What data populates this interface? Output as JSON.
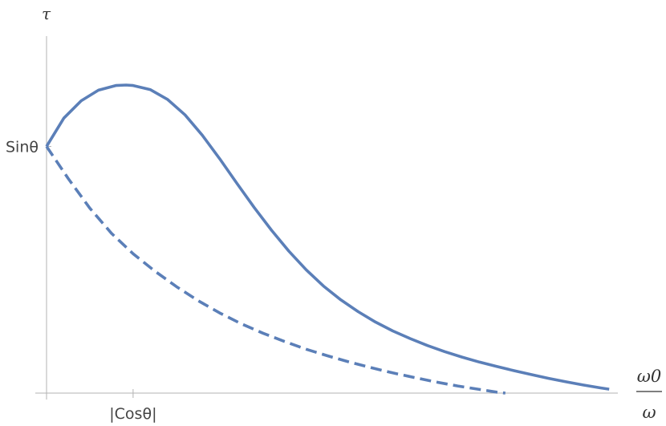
{
  "chart_data": {
    "type": "line",
    "title": "",
    "xlabel": {
      "numerator": "ω0",
      "denominator": "ω"
    },
    "ylabel": "τ",
    "xlim": [
      0,
      6.6
    ],
    "ylim": [
      0,
      1.47
    ],
    "x_ticks": [
      {
        "value": 1,
        "label": "|Cosθ|"
      }
    ],
    "y_ticks": [
      {
        "value": 1,
        "label": "Sinθ"
      }
    ],
    "grid": false,
    "legend": "none",
    "series": [
      {
        "style": "solid",
        "color": "#5b7fb8",
        "points": [
          [
            0.0,
            1.0
          ],
          [
            0.2,
            1.115
          ],
          [
            0.4,
            1.185
          ],
          [
            0.6,
            1.228
          ],
          [
            0.8,
            1.247
          ],
          [
            0.92,
            1.249
          ],
          [
            1.0,
            1.247
          ],
          [
            1.2,
            1.23
          ],
          [
            1.4,
            1.19
          ],
          [
            1.6,
            1.128
          ],
          [
            1.8,
            1.045
          ],
          [
            2.0,
            0.95
          ],
          [
            2.2,
            0.85
          ],
          [
            2.4,
            0.752
          ],
          [
            2.6,
            0.66
          ],
          [
            2.8,
            0.575
          ],
          [
            3.0,
            0.5
          ],
          [
            3.2,
            0.434
          ],
          [
            3.4,
            0.378
          ],
          [
            3.6,
            0.33
          ],
          [
            3.8,
            0.288
          ],
          [
            4.0,
            0.252
          ],
          [
            4.2,
            0.221
          ],
          [
            4.4,
            0.193
          ],
          [
            4.6,
            0.168
          ],
          [
            4.8,
            0.146
          ],
          [
            5.0,
            0.126
          ],
          [
            5.2,
            0.108
          ],
          [
            5.4,
            0.091
          ],
          [
            5.6,
            0.075
          ],
          [
            5.8,
            0.06
          ],
          [
            6.0,
            0.046
          ],
          [
            6.2,
            0.033
          ],
          [
            6.4,
            0.021
          ],
          [
            6.5,
            0.016
          ]
        ]
      },
      {
        "style": "dashed",
        "color": "#5b7fb8",
        "points": [
          [
            0.0,
            1.0
          ],
          [
            0.25,
            0.87
          ],
          [
            0.5,
            0.75
          ],
          [
            0.75,
            0.648
          ],
          [
            1.0,
            0.565
          ],
          [
            1.25,
            0.495
          ],
          [
            1.5,
            0.432
          ],
          [
            1.75,
            0.375
          ],
          [
            2.0,
            0.325
          ],
          [
            2.25,
            0.281
          ],
          [
            2.5,
            0.243
          ],
          [
            2.75,
            0.209
          ],
          [
            3.0,
            0.178
          ],
          [
            3.25,
            0.151
          ],
          [
            3.5,
            0.126
          ],
          [
            3.75,
            0.103
          ],
          [
            4.0,
            0.082
          ],
          [
            4.25,
            0.063
          ],
          [
            4.5,
            0.045
          ],
          [
            4.75,
            0.029
          ],
          [
            5.0,
            0.015
          ],
          [
            5.2,
            0.004
          ],
          [
            5.3,
            0.0
          ]
        ]
      }
    ]
  }
}
